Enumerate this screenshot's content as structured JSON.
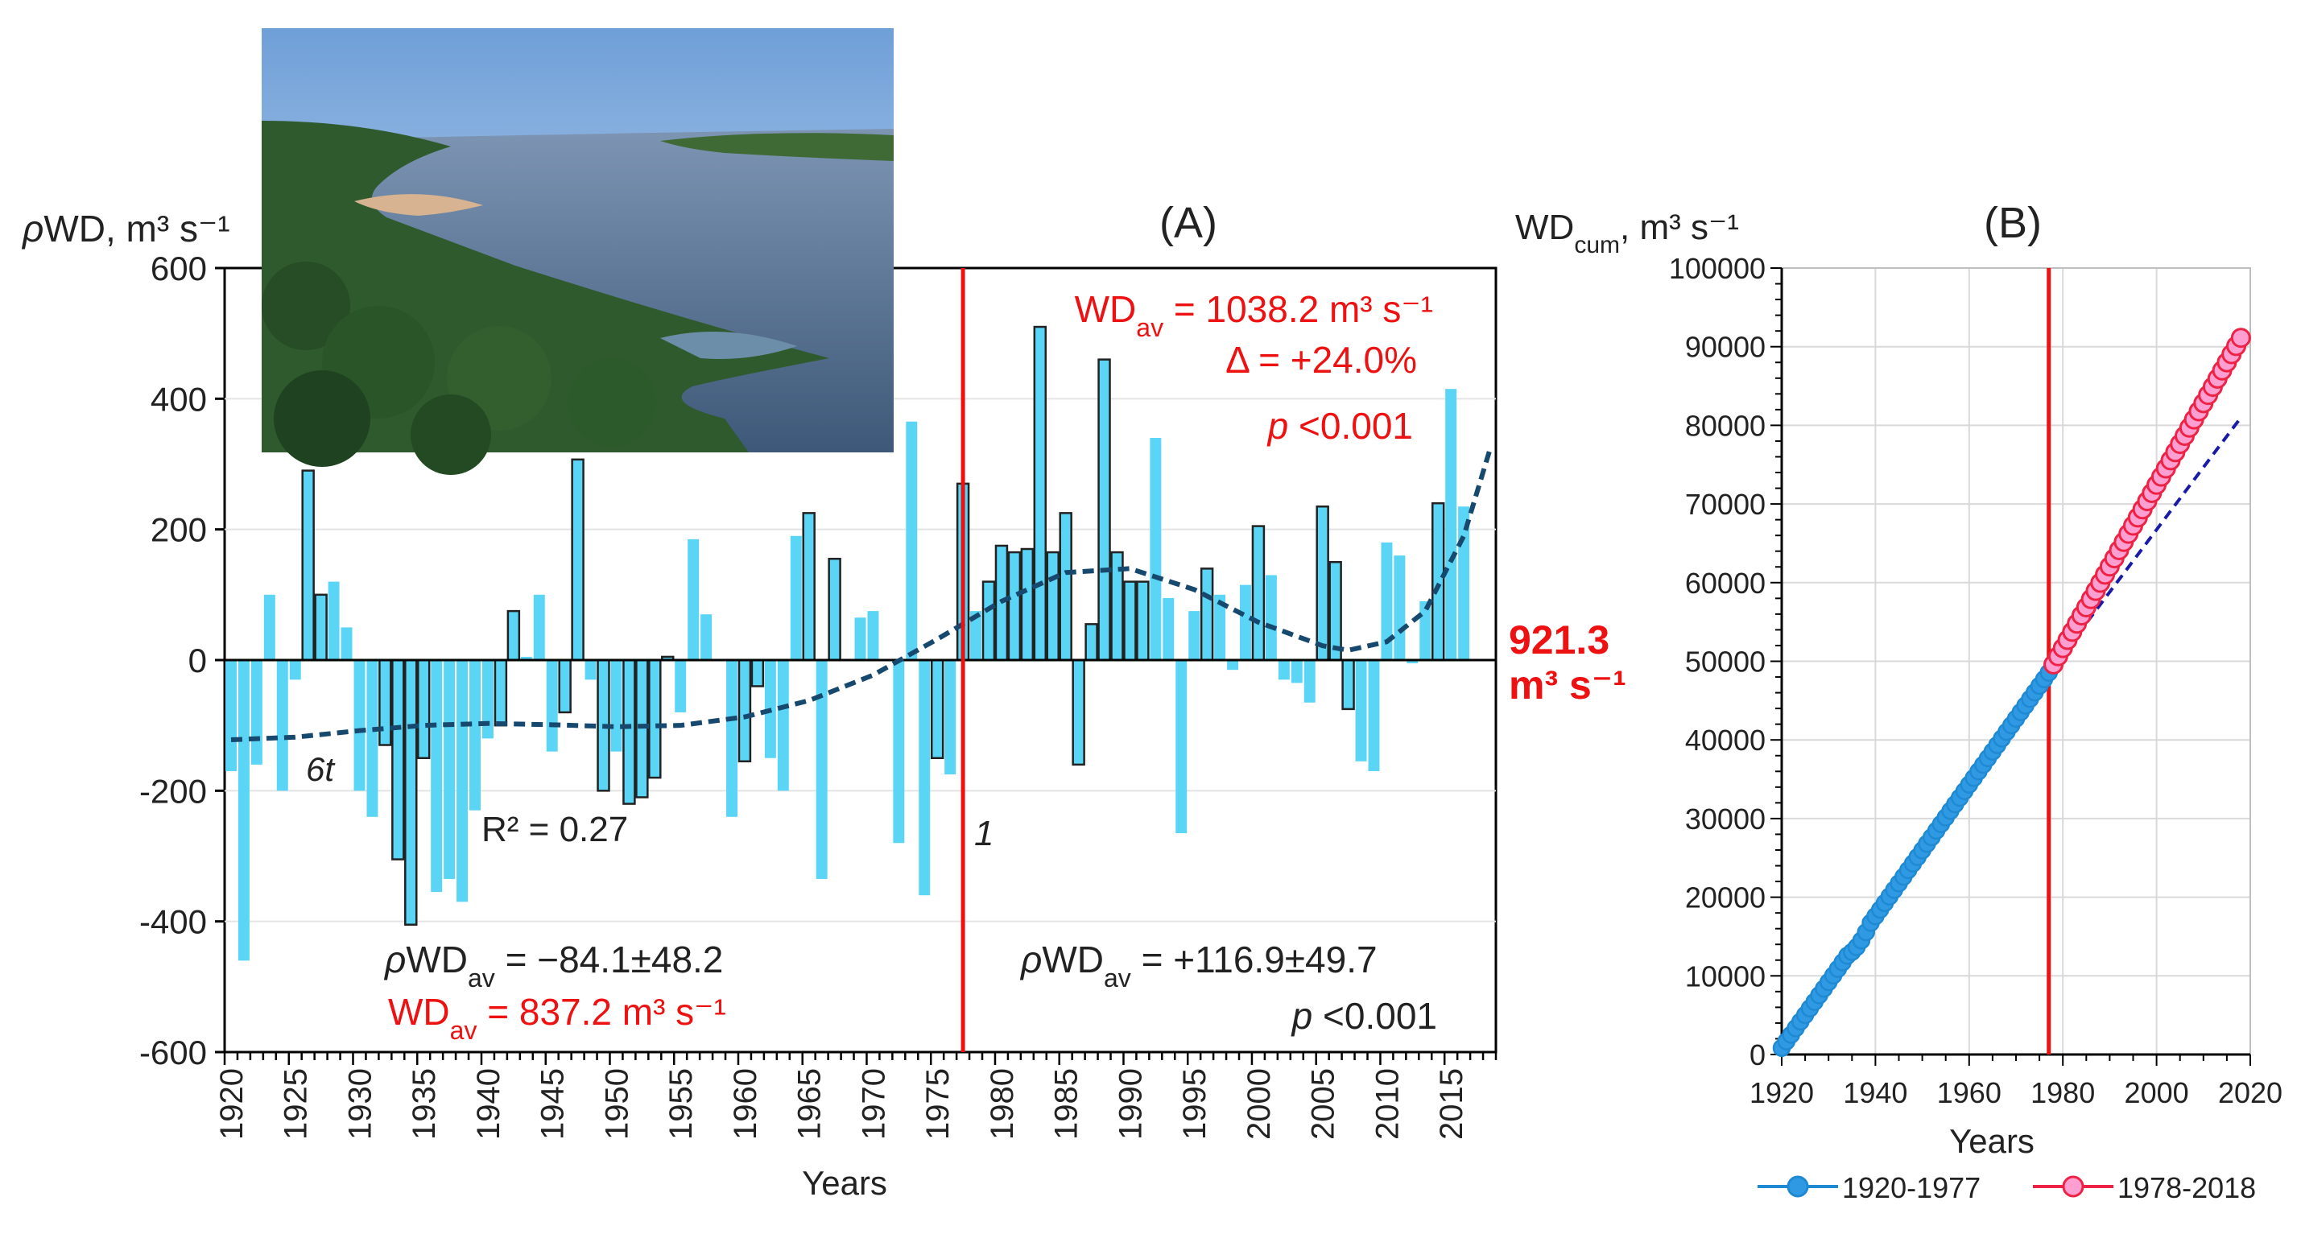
{
  "chart_data": [
    {
      "panel": "A",
      "type": "bar",
      "panel_label": "(A)",
      "ylabel": "ρWD, m³ s⁻¹",
      "xlabel": "Years",
      "ylim": [
        -600,
        600
      ],
      "yticks": [
        -600,
        -400,
        -200,
        0,
        200,
        400,
        600
      ],
      "xtick_years": [
        1920,
        1925,
        1930,
        1935,
        1940,
        1945,
        1950,
        1955,
        1960,
        1965,
        1970,
        1975,
        1980,
        1985,
        1990,
        1995,
        2000,
        2005,
        2010,
        2015
      ],
      "years_start": 1920,
      "years_end": 2018,
      "values": [
        -170,
        -460,
        -160,
        100,
        -200,
        -30,
        290,
        100,
        120,
        50,
        -200,
        -240,
        -130,
        -305,
        -405,
        -150,
        -355,
        -335,
        -370,
        -230,
        -120,
        -100,
        75,
        5,
        100,
        -140,
        -80,
        307,
        -30,
        -200,
        -140,
        -220,
        -210,
        -180,
        5,
        -80,
        185,
        70,
        0,
        -240,
        -155,
        -40,
        -150,
        -200,
        190,
        225,
        -335,
        155,
        0,
        65,
        75,
        0,
        -280,
        365,
        -360,
        -150,
        -175,
        270,
        75,
        120,
        175,
        165,
        170,
        510,
        165,
        225,
        -160,
        55,
        460,
        165,
        120,
        120,
        340,
        95,
        -265,
        75,
        140,
        100,
        -15,
        115,
        205,
        130,
        -30,
        -35,
        -65,
        235,
        150,
        -75,
        -155,
        -170,
        180,
        160,
        -5,
        90,
        240,
        415,
        235,
        0,
        0
      ],
      "trend_name": "6t",
      "trend_r2": "R² = 0.27",
      "trend": [
        [
          1920,
          -122
        ],
        [
          1925,
          -118
        ],
        [
          1930,
          -108
        ],
        [
          1935,
          -100
        ],
        [
          1940,
          -97
        ],
        [
          1945,
          -99
        ],
        [
          1950,
          -102
        ],
        [
          1955,
          -100
        ],
        [
          1960,
          -87
        ],
        [
          1965,
          -62
        ],
        [
          1970,
          -23
        ],
        [
          1975,
          32
        ],
        [
          1980,
          90
        ],
        [
          1985,
          134
        ],
        [
          1990,
          140
        ],
        [
          1995,
          108
        ],
        [
          2000,
          58
        ],
        [
          2005,
          22
        ],
        [
          2007,
          15
        ],
        [
          2010,
          28
        ],
        [
          2013,
          75
        ],
        [
          2016,
          190
        ],
        [
          2018,
          320
        ]
      ],
      "breakpoint_year": 1977.5,
      "breakpoint_label": "1",
      "long_term_mean": "921.3",
      "long_term_mean_unit": "m³ s⁻¹"
    },
    {
      "panel": "B",
      "type": "line",
      "panel_label": "(B)",
      "ylabel": "WD",
      "ylabel_sub": "cum",
      "ylabel_unit": ", m³ s⁻¹",
      "xlabel": "Years",
      "xlim": [
        1920,
        2020
      ],
      "ylim": [
        0,
        100000
      ],
      "xticks": [
        1920,
        1940,
        1960,
        1980,
        2000,
        2020
      ],
      "yticks": [
        0,
        10000,
        20000,
        30000,
        40000,
        50000,
        60000,
        70000,
        80000,
        90000,
        100000
      ],
      "breakpoint_year": 1977,
      "series": [
        {
          "name": "1920-1977",
          "color": "#1f8ad4",
          "fill": "#2f9ae3",
          "start_year": 1920,
          "end_year": 1977,
          "rate": 837.2,
          "wiggle": [
            [
              1935,
              -800
            ],
            [
              1937,
              -1200
            ],
            [
              1940,
              400
            ]
          ]
        },
        {
          "name": "1978-2018",
          "color": "#ee2244",
          "fill": "#ff9ed0",
          "start_year": 1978,
          "end_year": 2018,
          "rate": 1038.2
        }
      ],
      "extrapolation": {
        "from": [
          1977,
          48500
        ],
        "to": [
          2018,
          81000
        ]
      }
    }
  ],
  "annotations": {
    "right_mean_title_pre": "WD",
    "right_mean_title_sub": "av",
    "right_mean_title_post": " = 1038.2 m³ s⁻¹",
    "delta": "Δ = +24.0%",
    "p_italic": "p",
    "p_right_top": " <0.001",
    "left_rho": "ρ",
    "left_rho_pre": "WD",
    "left_rho_sub": "av",
    "left_rho_post": " = −84.1±48.2",
    "left_mean_pre": "WD",
    "left_mean_sub": "av",
    "left_mean_post": " = 837.2 m³ s⁻¹",
    "right_rho_post": " = +116.9±49.7",
    "p_right_bottom": " <0.001"
  },
  "colors": {
    "bar_fill": "#5ad5f5",
    "bar_dark_outline": "#222222",
    "trend": "#17496e",
    "breakpoint": "#ee1111",
    "annotation_red": "#ee1111"
  }
}
